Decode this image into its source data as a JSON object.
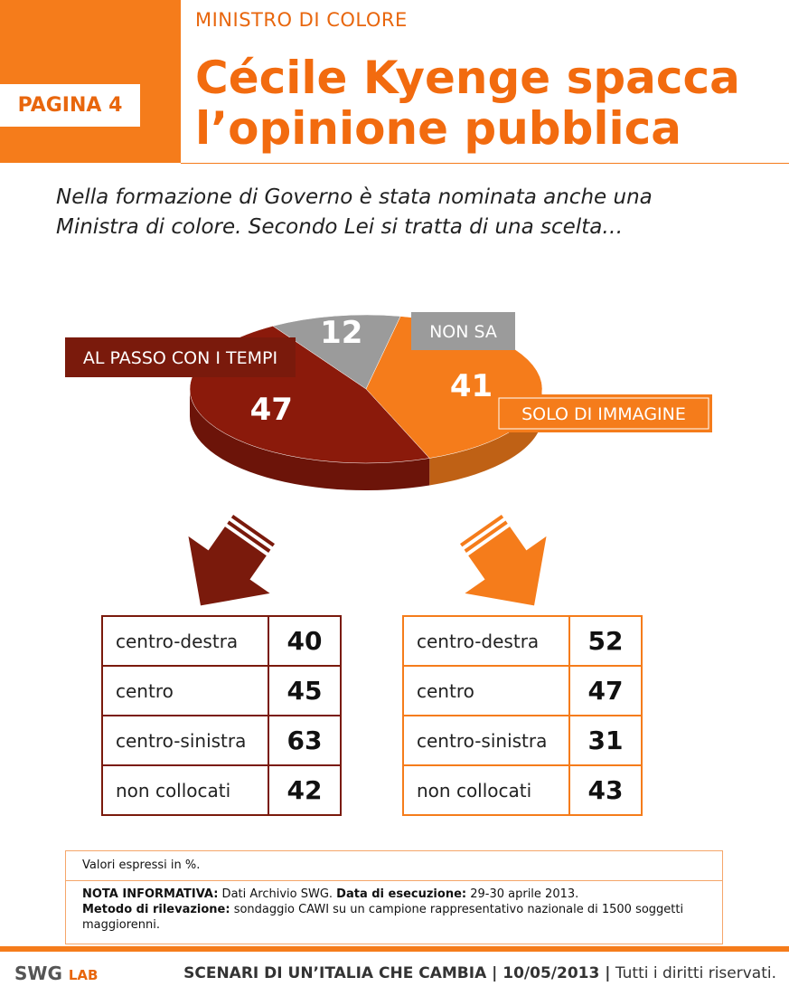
{
  "header": {
    "page_tag": "PAGINA 4",
    "kicker": "MINISTRO DI COLORE",
    "headline_line1": "Cécile Kyenge spacca",
    "headline_line2": "l’opinione pubblica"
  },
  "question": {
    "line1": "Nella formazione di Governo è stata nominata anche una",
    "line2": "Ministra di colore. Secondo Lei si tratta di una scelta…"
  },
  "chart_data": {
    "type": "pie",
    "categories": [
      "AL PASSO CON I TEMPI",
      "NON SA",
      "SOLO DI IMMAGINE"
    ],
    "values": [
      47,
      12,
      41
    ],
    "colors": [
      "#8b1a0b",
      "#9b9b9b",
      "#f57c1b"
    ],
    "label_colors": [
      "#7a1a0c",
      "#9b9b9b",
      "#f57c1b"
    ]
  },
  "tables": {
    "left": {
      "color": "#7a1a0c",
      "rows": [
        {
          "label": "centro-destra",
          "value": "40"
        },
        {
          "label": "centro",
          "value": "45"
        },
        {
          "label": "centro-sinistra",
          "value": "63"
        },
        {
          "label": "non collocati",
          "value": "42"
        }
      ]
    },
    "right": {
      "color": "#f57c1b",
      "rows": [
        {
          "label": "centro-destra",
          "value": "52"
        },
        {
          "label": "centro",
          "value": "47"
        },
        {
          "label": "centro-sinistra",
          "value": "31"
        },
        {
          "label": "non collocati",
          "value": "43"
        }
      ]
    }
  },
  "notes": {
    "values_note": "Valori espressi in %.",
    "nota_label": "NOTA INFORMATIVA:",
    "nota_text": " Dati Archivio SWG. ",
    "data_label": "Data di esecuzione:",
    "data_text": " 29-30 aprile 2013.",
    "metodo_label": "Metodo di rilevazione:",
    "metodo_text": " sondaggio CAWI su un campione rappresentativo nazionale di 1500 soggetti maggiorenni."
  },
  "footer": {
    "logo": "SWG",
    "logo_suffix": "LAB",
    "series_title": "SCENARI DI UN’ITALIA CHE CAMBIA | 10/05/2013 |",
    "rights": " Tutti i diritti riservati."
  }
}
